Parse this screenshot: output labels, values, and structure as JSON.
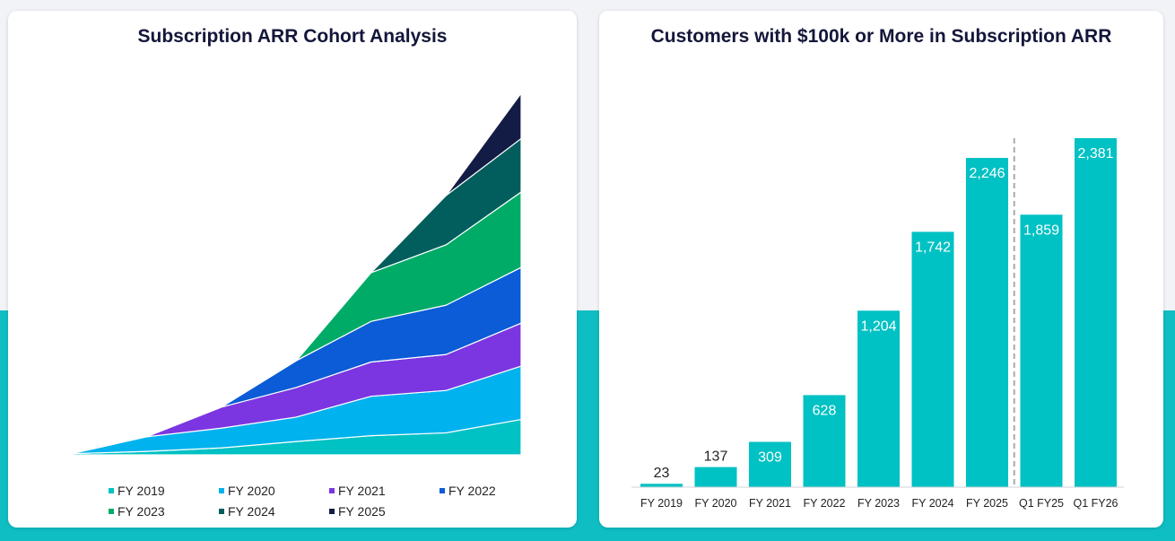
{
  "colors": {
    "background": "#f1f3f6",
    "band": "#0fbec3",
    "card": "#ffffff",
    "title": "#14163a",
    "bar": "#00c1c3",
    "divider": "#aaaaaa"
  },
  "chart_data": [
    {
      "type": "area",
      "stacked": true,
      "title": "Subscription ARR Cohort Analysis",
      "axes_visible": false,
      "legend_position": "bottom",
      "x": [
        "FY 2019",
        "FY 2020",
        "FY 2021",
        "FY 2022",
        "FY 2023",
        "FY 2024",
        "FY 2025"
      ],
      "series": [
        {
          "name": "FY 2019",
          "color": "#00c1c3",
          "values": [
            0.2,
            0.6,
            1.2,
            2.3,
            3.3,
            3.8,
            6.1
          ]
        },
        {
          "name": "FY 2020",
          "color": "#00b2ee",
          "values": [
            0.0,
            2.5,
            3.4,
            4.2,
            6.8,
            7.3,
            9.2
          ]
        },
        {
          "name": "FY 2021",
          "color": "#7b36e1",
          "values": [
            0.0,
            0.0,
            3.6,
            5.1,
            5.9,
            6.2,
            7.4
          ]
        },
        {
          "name": "FY 2022",
          "color": "#0b5cd6",
          "values": [
            0.0,
            0.0,
            0.0,
            4.6,
            7.0,
            8.5,
            9.6
          ]
        },
        {
          "name": "FY 2023",
          "color": "#00ab67",
          "values": [
            0.0,
            0.0,
            0.0,
            0.0,
            8.4,
            10.4,
            13.0
          ]
        },
        {
          "name": "FY 2024",
          "color": "#015e5c",
          "values": [
            0.0,
            0.0,
            0.0,
            0.0,
            0.0,
            8.5,
            9.2
          ]
        },
        {
          "name": "FY 2025",
          "color": "#131c44",
          "values": [
            0.0,
            0.0,
            0.0,
            0.0,
            0.0,
            0.0,
            7.8
          ]
        }
      ]
    },
    {
      "type": "bar",
      "title": "Customers with $100k or More in Subscription ARR",
      "categories": [
        "FY 2019",
        "FY 2020",
        "FY 2021",
        "FY 2022",
        "FY 2023",
        "FY 2024",
        "FY 2025",
        "Q1 FY25",
        "Q1 FY26"
      ],
      "values": [
        23,
        137,
        309,
        628,
        1204,
        1742,
        2246,
        1859,
        2381
      ],
      "value_labels": [
        "23",
        "137",
        "309",
        "628",
        "1,204",
        "1,742",
        "2,246",
        "1,859",
        "2,381"
      ],
      "ylim": [
        0,
        2381
      ],
      "y_axis_visible": false,
      "grid": false,
      "divider_between": [
        "FY 2025",
        "Q1 FY25"
      ]
    }
  ]
}
